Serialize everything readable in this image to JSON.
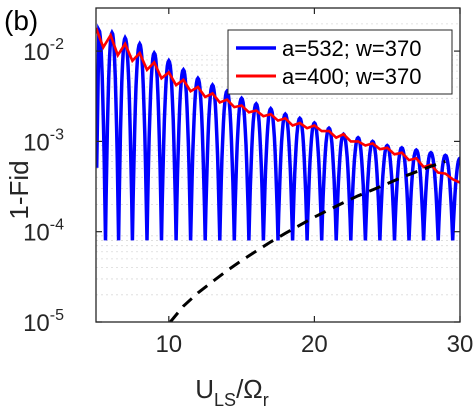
{
  "chart_data": {
    "type": "line",
    "panel_label": "(b)",
    "xlabel": {
      "main": "U",
      "sub1": "LS",
      "slash": "/Ω",
      "sub2": "r"
    },
    "ylabel": "1-Fid",
    "xlim": [
      5,
      30
    ],
    "ylim": [
      1e-05,
      0.03
    ],
    "yscale": "log",
    "grid": "minor-y",
    "legend_position": "top-right",
    "x_ticks": [
      10,
      20,
      30
    ],
    "y_ticks": [
      {
        "value": 1e-05,
        "base": "10",
        "exp": "-5"
      },
      {
        "value": 0.0001,
        "base": "10",
        "exp": "-4"
      },
      {
        "value": 0.001,
        "base": "10",
        "exp": "-3"
      },
      {
        "value": 0.01,
        "base": "10",
        "exp": "-2"
      }
    ],
    "series": [
      {
        "name": "a=532; w=370",
        "color": "#0000ff",
        "style": "solid",
        "description": "oscillating fidelity error",
        "peaks": [
          [
            5.2,
            0.017
          ],
          [
            6.1,
            0.016
          ],
          [
            7.0,
            0.014
          ],
          [
            8.0,
            0.012
          ],
          [
            9.0,
            0.0095
          ],
          [
            10.0,
            0.0078
          ],
          [
            11.0,
            0.0062
          ],
          [
            12.0,
            0.005
          ],
          [
            13.0,
            0.0042
          ],
          [
            14.0,
            0.0036
          ],
          [
            15.0,
            0.003
          ],
          [
            16.0,
            0.0026
          ],
          [
            17.0,
            0.0023
          ],
          [
            18.0,
            0.002
          ],
          [
            19.0,
            0.0018
          ],
          [
            20.0,
            0.0016
          ],
          [
            21.0,
            0.0014
          ],
          [
            22.0,
            0.0012
          ],
          [
            23.0,
            0.0011
          ],
          [
            24.0,
            0.001
          ],
          [
            25.0,
            0.0009
          ],
          [
            26.0,
            0.00085
          ],
          [
            27.0,
            0.0008
          ],
          [
            28.0,
            0.00075
          ],
          [
            29.0,
            0.0007
          ],
          [
            30.0,
            0.00065
          ]
        ],
        "trough": 8e-05
      },
      {
        "name": "a=400; w=370",
        "color": "#ff0000",
        "style": "solid",
        "points": [
          [
            5.0,
            0.018
          ],
          [
            5.5,
            0.011
          ],
          [
            6.0,
            0.015
          ],
          [
            6.5,
            0.009
          ],
          [
            7.0,
            0.012
          ],
          [
            7.5,
            0.0078
          ],
          [
            8.0,
            0.0095
          ],
          [
            8.5,
            0.0062
          ],
          [
            9.0,
            0.0075
          ],
          [
            9.5,
            0.005
          ],
          [
            10.0,
            0.0058
          ],
          [
            10.5,
            0.0042
          ],
          [
            11.0,
            0.0048
          ],
          [
            11.5,
            0.0036
          ],
          [
            12.0,
            0.004
          ],
          [
            12.5,
            0.0031
          ],
          [
            13.0,
            0.0034
          ],
          [
            13.5,
            0.0027
          ],
          [
            14.0,
            0.0029
          ],
          [
            14.5,
            0.0024
          ],
          [
            15.0,
            0.0025
          ],
          [
            15.5,
            0.0021
          ],
          [
            16.0,
            0.0022
          ],
          [
            16.5,
            0.0019
          ],
          [
            17.0,
            0.002
          ],
          [
            17.5,
            0.0017
          ],
          [
            18.0,
            0.0018
          ],
          [
            18.5,
            0.0015
          ],
          [
            19.0,
            0.0016
          ],
          [
            19.5,
            0.0014
          ],
          [
            20.0,
            0.0015
          ],
          [
            20.5,
            0.0013
          ],
          [
            21.0,
            0.0013
          ],
          [
            21.5,
            0.0011
          ],
          [
            22.0,
            0.0012
          ],
          [
            22.5,
            0.001
          ],
          [
            23.0,
            0.001
          ],
          [
            23.5,
            0.0009
          ],
          [
            24.0,
            0.00095
          ],
          [
            24.5,
            0.00082
          ],
          [
            25.0,
            0.00085
          ],
          [
            25.5,
            0.00072
          ],
          [
            26.0,
            0.00075
          ],
          [
            26.5,
            0.00062
          ],
          [
            27.0,
            0.00065
          ],
          [
            27.5,
            0.00052
          ],
          [
            28.0,
            0.00055
          ],
          [
            28.5,
            0.00045
          ],
          [
            29.0,
            0.00044
          ],
          [
            29.5,
            0.00038
          ],
          [
            30.0,
            0.00035
          ]
        ]
      },
      {
        "color": "#000000",
        "style": "dashed",
        "points": [
          [
            10.1,
            1e-05
          ],
          [
            11.0,
            1.5e-05
          ],
          [
            12.0,
            2.1e-05
          ],
          [
            13.0,
            2.8e-05
          ],
          [
            14.0,
            3.7e-05
          ],
          [
            15.0,
            4.8e-05
          ],
          [
            16.0,
            6.1e-05
          ],
          [
            17.0,
            7.7e-05
          ],
          [
            18.0,
            9.6e-05
          ],
          [
            19.0,
            0.000118
          ],
          [
            20.0,
            0.000145
          ],
          [
            21.0,
            0.000175
          ],
          [
            22.0,
            0.00021
          ],
          [
            23.0,
            0.00025
          ],
          [
            24.0,
            0.00029
          ],
          [
            25.0,
            0.00034
          ],
          [
            26.0,
            0.0004
          ],
          [
            27.0,
            0.00046
          ],
          [
            28.0,
            0.00053
          ],
          [
            29.0,
            0.0006
          ]
        ]
      }
    ]
  }
}
